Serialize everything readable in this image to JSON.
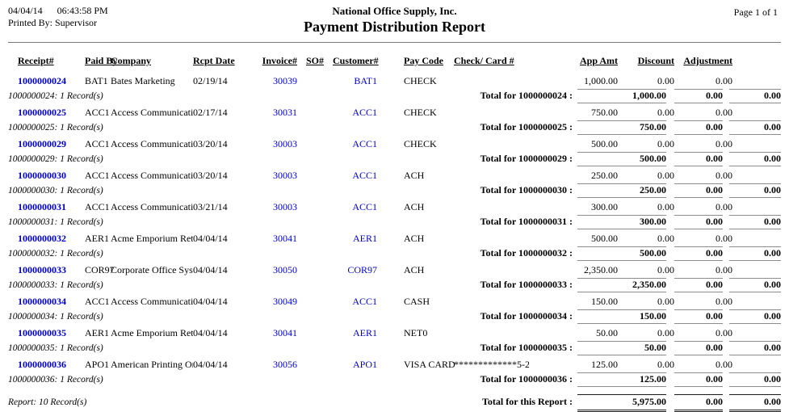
{
  "colors": {
    "link_blue": "#0000cc",
    "rule_gray": "#7a7a7a",
    "text": "#000000"
  },
  "header": {
    "date": "04/04/14",
    "time": "06:43:58 PM",
    "printed_by": "Printed By: Supervisor",
    "company_name": "National Office Supply, Inc.",
    "report_title": "Payment Distribution Report",
    "page_label": "Page 1 of 1"
  },
  "columns": {
    "receipt": "Receipt#",
    "paid_by": "Paid By",
    "company": "Company",
    "rcpt_date": "Rcpt Date",
    "invoice": "Invoice#",
    "so": "SO#",
    "customer": "Customer#",
    "pay_code": "Pay Code",
    "check_card": "Check/ Card #",
    "app_amt": "App Amt",
    "discount": "Discount",
    "adjustment": "Adjustment"
  },
  "rows": [
    {
      "receipt": "1000000024",
      "paid_by": "BAT1",
      "company": "Bates Marketing",
      "rcpt_date": "02/19/14",
      "invoice": "30039",
      "so": "",
      "customer": "BAT1",
      "pay_code": "CHECK",
      "check_card": "",
      "app_amt": "1,000.00",
      "discount": "0.00",
      "adjustment": "0.00",
      "records_label": "1000000024: 1 Record(s)",
      "total_label": "Total for 1000000024 :",
      "total_app": "1,000.00",
      "total_discount": "0.00",
      "total_adjustment": "0.00"
    },
    {
      "receipt": "1000000025",
      "paid_by": "ACC1",
      "company": "Access Communications",
      "rcpt_date": "02/17/14",
      "invoice": "30031",
      "so": "",
      "customer": "ACC1",
      "pay_code": "CHECK",
      "check_card": "",
      "app_amt": "750.00",
      "discount": "0.00",
      "adjustment": "0.00",
      "records_label": "1000000025: 1 Record(s)",
      "total_label": "Total for 1000000025 :",
      "total_app": "750.00",
      "total_discount": "0.00",
      "total_adjustment": "0.00"
    },
    {
      "receipt": "1000000029",
      "paid_by": "ACC1",
      "company": "Access Communications",
      "rcpt_date": "03/20/14",
      "invoice": "30003",
      "so": "",
      "customer": "ACC1",
      "pay_code": "CHECK",
      "check_card": "",
      "app_amt": "500.00",
      "discount": "0.00",
      "adjustment": "0.00",
      "records_label": "1000000029: 1 Record(s)",
      "total_label": "Total for 1000000029 :",
      "total_app": "500.00",
      "total_discount": "0.00",
      "total_adjustment": "0.00"
    },
    {
      "receipt": "1000000030",
      "paid_by": "ACC1",
      "company": "Access Communications",
      "rcpt_date": "03/20/14",
      "invoice": "30003",
      "so": "",
      "customer": "ACC1",
      "pay_code": "ACH",
      "check_card": "",
      "app_amt": "250.00",
      "discount": "0.00",
      "adjustment": "0.00",
      "records_label": "1000000030: 1 Record(s)",
      "total_label": "Total for 1000000030 :",
      "total_app": "250.00",
      "total_discount": "0.00",
      "total_adjustment": "0.00"
    },
    {
      "receipt": "1000000031",
      "paid_by": "ACC1",
      "company": "Access Communications",
      "rcpt_date": "03/21/14",
      "invoice": "30003",
      "so": "",
      "customer": "ACC1",
      "pay_code": "ACH",
      "check_card": "",
      "app_amt": "300.00",
      "discount": "0.00",
      "adjustment": "0.00",
      "records_label": "1000000031: 1 Record(s)",
      "total_label": "Total for 1000000031 :",
      "total_app": "300.00",
      "total_discount": "0.00",
      "total_adjustment": "0.00"
    },
    {
      "receipt": "1000000032",
      "paid_by": "AER1",
      "company": "Acme Emporium Retail",
      "rcpt_date": "04/04/14",
      "invoice": "30041",
      "so": "",
      "customer": "AER1",
      "pay_code": "ACH",
      "check_card": "",
      "app_amt": "500.00",
      "discount": "0.00",
      "adjustment": "0.00",
      "records_label": "1000000032: 1 Record(s)",
      "total_label": "Total for 1000000032 :",
      "total_app": "500.00",
      "total_discount": "0.00",
      "total_adjustment": "0.00"
    },
    {
      "receipt": "1000000033",
      "paid_by": "COR97",
      "company": "Corporate Office Systems",
      "rcpt_date": "04/04/14",
      "invoice": "30050",
      "so": "",
      "customer": "COR97",
      "pay_code": "ACH",
      "check_card": "",
      "app_amt": "2,350.00",
      "discount": "0.00",
      "adjustment": "0.00",
      "records_label": "1000000033: 1 Record(s)",
      "total_label": "Total for 1000000033 :",
      "total_app": "2,350.00",
      "total_discount": "0.00",
      "total_adjustment": "0.00"
    },
    {
      "receipt": "1000000034",
      "paid_by": "ACC1",
      "company": "Access Communications",
      "rcpt_date": "04/04/14",
      "invoice": "30049",
      "so": "",
      "customer": "ACC1",
      "pay_code": "CASH",
      "check_card": "",
      "app_amt": "150.00",
      "discount": "0.00",
      "adjustment": "0.00",
      "records_label": "1000000034: 1 Record(s)",
      "total_label": "Total for 1000000034 :",
      "total_app": "150.00",
      "total_discount": "0.00",
      "total_adjustment": "0.00"
    },
    {
      "receipt": "1000000035",
      "paid_by": "AER1",
      "company": "Acme Emporium Retail",
      "rcpt_date": "04/04/14",
      "invoice": "30041",
      "so": "",
      "customer": "AER1",
      "pay_code": "NET0",
      "check_card": "",
      "app_amt": "50.00",
      "discount": "0.00",
      "adjustment": "0.00",
      "records_label": "1000000035: 1 Record(s)",
      "total_label": "Total for 1000000035 :",
      "total_app": "50.00",
      "total_discount": "0.00",
      "total_adjustment": "0.00"
    },
    {
      "receipt": "1000000036",
      "paid_by": "APO1",
      "company": "American Printing Orga",
      "rcpt_date": "04/04/14",
      "invoice": "30056",
      "so": "",
      "customer": "APO1",
      "pay_code": "VISA CARD",
      "check_card": "*************5-25",
      "app_amt": "125.00",
      "discount": "0.00",
      "adjustment": "0.00",
      "records_label": "1000000036: 1 Record(s)",
      "total_label": "Total for 1000000036 :",
      "total_app": "125.00",
      "total_discount": "0.00",
      "total_adjustment": "0.00"
    }
  ],
  "footer": {
    "report_records": "Report: 10 Record(s)",
    "total_label": "Total for this Report :",
    "total_app": "5,975.00",
    "total_discount": "0.00",
    "total_adjustment": "0.00"
  }
}
